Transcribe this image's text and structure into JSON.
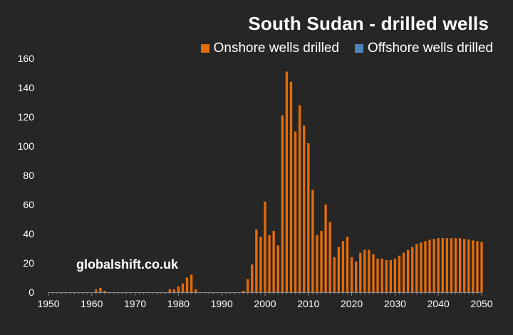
{
  "title": "South Sudan - drilled wells",
  "watermark": "globalshift.co.uk",
  "legend": {
    "onshore_label": "Onshore wells drilled",
    "offshore_label": "Offshore wells drilled"
  },
  "colors": {
    "background": "#262626",
    "onshore": "#E46C0A",
    "offshore": "#4F81BD",
    "axis": "#8a8a8a",
    "text": "#ffffff"
  },
  "chart_data": {
    "type": "bar",
    "title": "South Sudan - drilled wells",
    "xlabel": "",
    "ylabel": "",
    "xlim": [
      1950,
      2050
    ],
    "ylim": [
      0,
      160
    ],
    "x_ticks": [
      "1950",
      "1960",
      "1970",
      "1980",
      "1990",
      "2000",
      "2010",
      "2020",
      "2030",
      "2040",
      "2050"
    ],
    "y_ticks": [
      "0",
      "20",
      "40",
      "60",
      "80",
      "100",
      "120",
      "140",
      "160"
    ],
    "grid": false,
    "legend_position": "top-right",
    "series": [
      {
        "name": "Onshore wells drilled",
        "color": "#E46C0A",
        "points": [
          [
            1961,
            2
          ],
          [
            1962,
            3
          ],
          [
            1963,
            1
          ],
          [
            1978,
            2
          ],
          [
            1979,
            2
          ],
          [
            1980,
            4
          ],
          [
            1981,
            6
          ],
          [
            1982,
            10
          ],
          [
            1983,
            12
          ],
          [
            1984,
            2
          ],
          [
            1995,
            1
          ],
          [
            1996,
            9
          ],
          [
            1997,
            19
          ],
          [
            1998,
            43
          ],
          [
            1999,
            38
          ],
          [
            2000,
            62
          ],
          [
            2001,
            39
          ],
          [
            2002,
            42
          ],
          [
            2003,
            32
          ],
          [
            2004,
            121
          ],
          [
            2005,
            151
          ],
          [
            2006,
            144
          ],
          [
            2007,
            110
          ],
          [
            2008,
            128
          ],
          [
            2009,
            114
          ],
          [
            2010,
            102
          ],
          [
            2011,
            70
          ],
          [
            2012,
            39
          ],
          [
            2013,
            42
          ],
          [
            2014,
            60
          ],
          [
            2015,
            48
          ],
          [
            2016,
            24
          ],
          [
            2017,
            31
          ],
          [
            2018,
            35
          ],
          [
            2019,
            38
          ],
          [
            2020,
            24
          ],
          [
            2021,
            21
          ],
          [
            2022,
            27
          ],
          [
            2023,
            29
          ],
          [
            2024,
            29
          ],
          [
            2025,
            26
          ],
          [
            2026,
            23
          ],
          [
            2027,
            23
          ],
          [
            2028,
            22
          ],
          [
            2029,
            22
          ],
          [
            2030,
            23
          ],
          [
            2031,
            25
          ],
          [
            2032,
            27
          ],
          [
            2033,
            29
          ],
          [
            2034,
            31
          ],
          [
            2035,
            33
          ],
          [
            2036,
            34
          ],
          [
            2037,
            35
          ],
          [
            2038,
            36
          ],
          [
            2039,
            36.5
          ],
          [
            2040,
            37
          ],
          [
            2041,
            37
          ],
          [
            2042,
            37
          ],
          [
            2043,
            37
          ],
          [
            2044,
            37
          ],
          [
            2045,
            37
          ],
          [
            2046,
            36.5
          ],
          [
            2047,
            36
          ],
          [
            2048,
            35.5
          ],
          [
            2049,
            35
          ],
          [
            2050,
            34.5
          ]
        ]
      },
      {
        "name": "Offshore wells drilled",
        "color": "#4F81BD",
        "points": []
      }
    ]
  }
}
